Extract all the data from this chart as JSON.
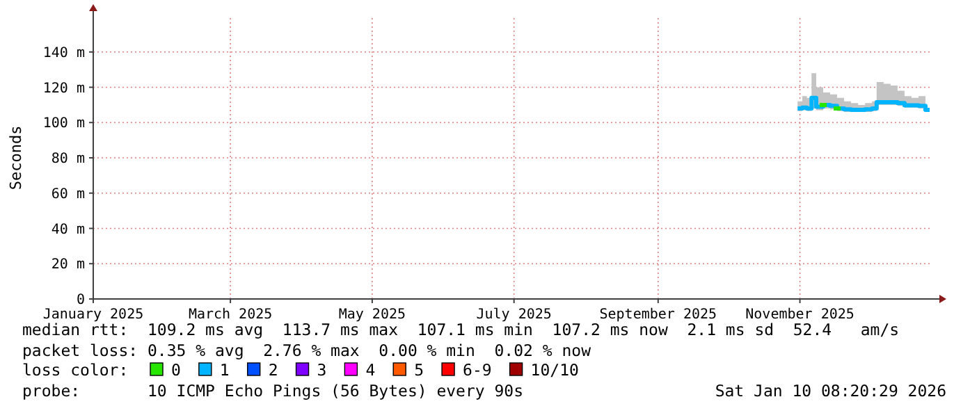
{
  "chart_data": {
    "type": "line",
    "ylabel": "Seconds",
    "x": [
      "2025-10-31",
      "2025-11-02",
      "2025-11-04",
      "2025-11-06",
      "2025-11-08",
      "2025-11-11",
      "2025-11-14",
      "2025-11-17",
      "2025-11-20",
      "2025-11-23",
      "2025-11-26",
      "2025-11-29",
      "2025-12-02",
      "2025-12-04",
      "2025-12-07",
      "2025-12-10",
      "2025-12-13",
      "2025-12-16",
      "2025-12-19",
      "2025-12-22",
      "2025-12-25"
    ],
    "series": [
      {
        "name": "0",
        "color": "#26e600",
        "values": [
          null,
          null,
          null,
          null,
          null,
          110,
          null,
          108,
          null,
          null,
          null,
          null,
          null,
          null,
          null,
          null,
          null,
          null,
          null,
          null,
          null
        ]
      },
      {
        "name": "1",
        "color": "#00b4ff",
        "values": [
          108,
          108.5,
          108,
          114,
          109,
          110,
          109.5,
          108,
          107.5,
          107.2,
          107.2,
          107.5,
          108,
          111.5,
          111.5,
          111.5,
          111,
          109.8,
          109.8,
          109.5,
          107.2
        ],
        "lower": [
          106.5,
          107,
          106.5,
          108,
          107,
          108,
          107.5,
          106.5,
          106,
          106,
          106,
          106,
          106.5,
          110,
          110,
          110,
          109.5,
          108.5,
          108.5,
          108,
          106
        ],
        "upper": [
          112,
          115,
          114,
          128,
          120,
          117,
          116,
          114,
          112,
          111,
          110,
          111,
          112,
          123,
          122,
          121,
          118,
          115,
          114,
          115,
          112
        ]
      },
      {
        "name": "2",
        "color": "#0050ff",
        "values": [
          null,
          null,
          null,
          null,
          null,
          null,
          null,
          null,
          null,
          null,
          null,
          null,
          null,
          null,
          null,
          null,
          null,
          null,
          null,
          null,
          null
        ]
      },
      {
        "name": "3",
        "color": "#8000ff",
        "values": [
          null,
          null,
          null,
          null,
          null,
          null,
          null,
          null,
          null,
          null,
          null,
          null,
          null,
          null,
          null,
          null,
          null,
          null,
          null,
          null,
          null
        ]
      },
      {
        "name": "4",
        "color": "#ff00ff",
        "values": [
          null,
          null,
          null,
          null,
          null,
          null,
          null,
          null,
          null,
          null,
          null,
          null,
          null,
          null,
          null,
          null,
          null,
          null,
          null,
          null,
          null
        ]
      },
      {
        "name": "5",
        "color": "#ff5a00",
        "values": [
          null,
          null,
          null,
          null,
          null,
          null,
          null,
          null,
          null,
          null,
          null,
          null,
          null,
          null,
          null,
          null,
          null,
          null,
          null,
          null,
          null
        ]
      },
      {
        "name": "6-9",
        "color": "#ff0000",
        "values": [
          null,
          null,
          null,
          null,
          null,
          null,
          null,
          null,
          null,
          null,
          null,
          null,
          null,
          null,
          null,
          null,
          null,
          null,
          null,
          null,
          null
        ]
      },
      {
        "name": "10/10",
        "color": "#a00000",
        "values": [
          null,
          null,
          null,
          null,
          null,
          null,
          null,
          null,
          null,
          null,
          null,
          null,
          null,
          null,
          null,
          null,
          null,
          null,
          null,
          null,
          null
        ]
      }
    ],
    "legend": "bottom",
    "legend_title": "loss color:",
    "xlim": [
      "2025-01-01",
      "2025-12-28"
    ],
    "xticks": [
      {
        "value": "2025-01-01",
        "label": "January 2025"
      },
      {
        "value": "2025-03-01",
        "label": "March 2025"
      },
      {
        "value": "2025-05-01",
        "label": "May 2025"
      },
      {
        "value": "2025-07-01",
        "label": "July 2025"
      },
      {
        "value": "2025-09-01",
        "label": "September 2025"
      },
      {
        "value": "2025-11-01",
        "label": "November 2025"
      }
    ],
    "ylim": [
      0,
      160
    ],
    "yticks": [
      0,
      {
        "value": 20,
        "label": "20 m"
      },
      {
        "value": 40,
        "label": "40 m"
      },
      {
        "value": 60,
        "label": "60 m"
      },
      {
        "value": 80,
        "label": "80 m"
      },
      {
        "value": 100,
        "label": "100 m"
      },
      {
        "value": 120,
        "label": "120 m"
      },
      {
        "value": 140,
        "label": "140 m"
      }
    ],
    "grid": true,
    "annotations": [
      "median rtt:  109.2 ms avg  113.7 ms max  107.1 ms min  107.2 ms now  2.1 ms sd  52.4   am/s",
      "packet loss: 0.35 % avg  2.76 % max  0.00 % min  0.02 % now",
      "probe:       10 ICMP Echo Pings (56 Bytes) every 90s",
      "Sat Jan 10 08:20:29 2026"
    ]
  }
}
